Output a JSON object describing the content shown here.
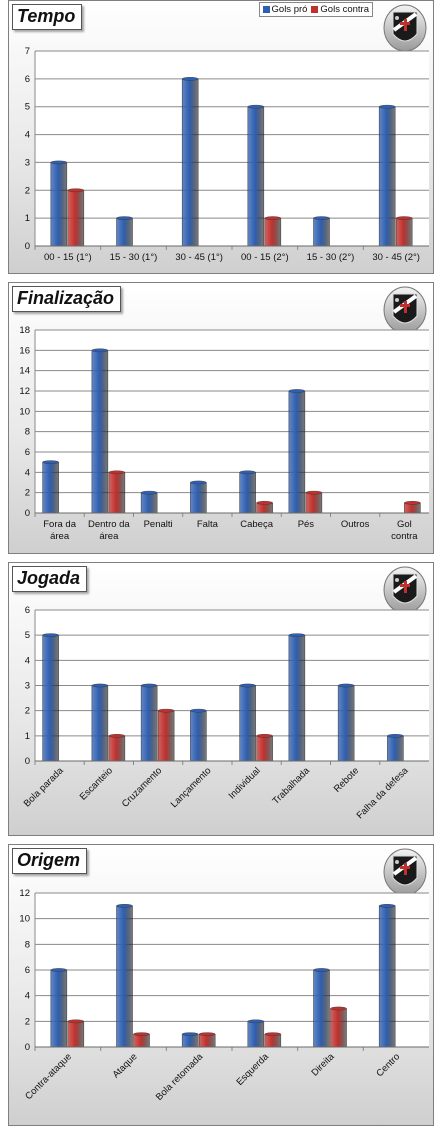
{
  "legend": {
    "items": [
      "Gols pró",
      "Gols contra"
    ]
  },
  "colors": {
    "pro": "#2f5fb0",
    "contra": "#c0312e"
  },
  "charts": [
    {
      "title": "Tempo"
    },
    {
      "title": "Finalização"
    },
    {
      "title": "Jogada"
    },
    {
      "title": "Origem"
    }
  ],
  "chart_data": [
    {
      "type": "bar",
      "title": "Tempo",
      "categories": [
        "00 - 15 (1°)",
        "15 - 30 (1°)",
        "30 - 45 (1°)",
        "00 - 15 (2°)",
        "15 - 30 (2°)",
        "30 - 45 (2°)"
      ],
      "series": [
        {
          "name": "Gols pró",
          "values": [
            3,
            1,
            6,
            5,
            1,
            5
          ]
        },
        {
          "name": "Gols contra",
          "values": [
            2,
            0,
            0,
            1,
            0,
            1
          ]
        }
      ],
      "ylim": [
        0,
        7
      ],
      "yticks": [
        0,
        1,
        2,
        3,
        4,
        5,
        6,
        7
      ],
      "grid": true,
      "legend": "top-right",
      "label_rotation": 0
    },
    {
      "type": "bar",
      "title": "Finalização",
      "categories": [
        "Fora da área",
        "Dentro da área",
        "Penalti",
        "Falta",
        "Cabeça",
        "Pés",
        "Outros",
        "Gol contra"
      ],
      "series": [
        {
          "name": "Gols pró",
          "values": [
            5,
            16,
            2,
            3,
            4,
            12,
            0,
            0
          ]
        },
        {
          "name": "Gols contra",
          "values": [
            0,
            4,
            0,
            0,
            1,
            2,
            0,
            1
          ]
        }
      ],
      "ylim": [
        0,
        18
      ],
      "yticks": [
        0,
        2,
        4,
        6,
        8,
        10,
        12,
        14,
        16,
        18
      ],
      "grid": true,
      "label_rotation": 0
    },
    {
      "type": "bar",
      "title": "Jogada",
      "categories": [
        "Bola parada",
        "Escanteio",
        "Cruzamento",
        "Lançamento",
        "Individual",
        "Trabalhada",
        "Rebote",
        "Falha da defesa"
      ],
      "series": [
        {
          "name": "Gols pró",
          "values": [
            5,
            3,
            3,
            2,
            3,
            5,
            3,
            1
          ]
        },
        {
          "name": "Gols contra",
          "values": [
            0,
            1,
            2,
            0,
            1,
            0,
            0,
            0
          ]
        }
      ],
      "ylim": [
        0,
        6
      ],
      "yticks": [
        0,
        1,
        2,
        3,
        4,
        5,
        6
      ],
      "grid": true,
      "label_rotation": -45
    },
    {
      "type": "bar",
      "title": "Origem",
      "categories": [
        "Contra-ataque",
        "Ataque",
        "Bola retomada",
        "Esquerda",
        "Direita",
        "Centro"
      ],
      "series": [
        {
          "name": "Gols pró",
          "values": [
            6,
            11,
            1,
            2,
            6,
            11
          ]
        },
        {
          "name": "Gols contra",
          "values": [
            2,
            1,
            1,
            1,
            3,
            0
          ]
        }
      ],
      "ylim": [
        0,
        12
      ],
      "yticks": [
        0,
        2,
        4,
        6,
        8,
        10,
        12
      ],
      "grid": true,
      "label_rotation": -45
    }
  ]
}
